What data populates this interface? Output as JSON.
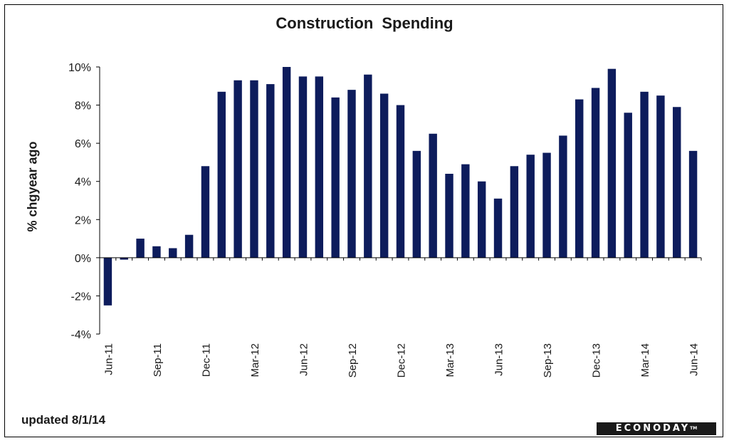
{
  "chart_data": {
    "type": "bar",
    "title": "Construction Spending",
    "ylabel": "% chgyear ago",
    "xlabel": "",
    "ylim": [
      -4,
      10
    ],
    "yticks": [
      "-4%",
      "-2%",
      "0%",
      "2%",
      "4%",
      "6%",
      "8%",
      "10%"
    ],
    "grid": false,
    "legend": "none",
    "bar_color": "#0d1c5c",
    "categories": [
      "Jun-11",
      "Jul-11",
      "Aug-11",
      "Sep-11",
      "Oct-11",
      "Nov-11",
      "Dec-11",
      "Jan-12",
      "Feb-12",
      "Mar-12",
      "Apr-12",
      "May-12",
      "Jun-12",
      "Jul-12",
      "Aug-12",
      "Sep-12",
      "Oct-12",
      "Nov-12",
      "Dec-12",
      "Jan-13",
      "Feb-13",
      "Mar-13",
      "Apr-13",
      "May-13",
      "Jun-13",
      "Jul-13",
      "Aug-13",
      "Sep-13",
      "Oct-13",
      "Nov-13",
      "Dec-13",
      "Jan-14",
      "Feb-14",
      "Mar-14",
      "Apr-14",
      "May-14",
      "Jun-14"
    ],
    "tick_labels": [
      "Jun-11",
      "Sep-11",
      "Dec-11",
      "Mar-12",
      "Jun-12",
      "Sep-12",
      "Dec-12",
      "Mar-13",
      "Jun-13",
      "Sep-13",
      "Dec-13",
      "Mar-14",
      "Jun-14"
    ],
    "values": [
      -2.5,
      -0.1,
      1.0,
      0.6,
      0.5,
      1.2,
      4.8,
      8.7,
      9.3,
      9.3,
      9.1,
      10.0,
      9.5,
      9.5,
      8.4,
      8.8,
      9.6,
      8.6,
      8.0,
      5.6,
      6.5,
      4.4,
      4.9,
      4.0,
      3.1,
      4.8,
      5.4,
      5.5,
      6.4,
      8.3,
      8.9,
      9.9,
      7.6,
      8.7,
      8.5,
      7.9,
      5.6
    ]
  },
  "footer": {
    "updated": "updated 8/1/14",
    "logo": "ECONODAY",
    "logo_tm": "TM"
  }
}
